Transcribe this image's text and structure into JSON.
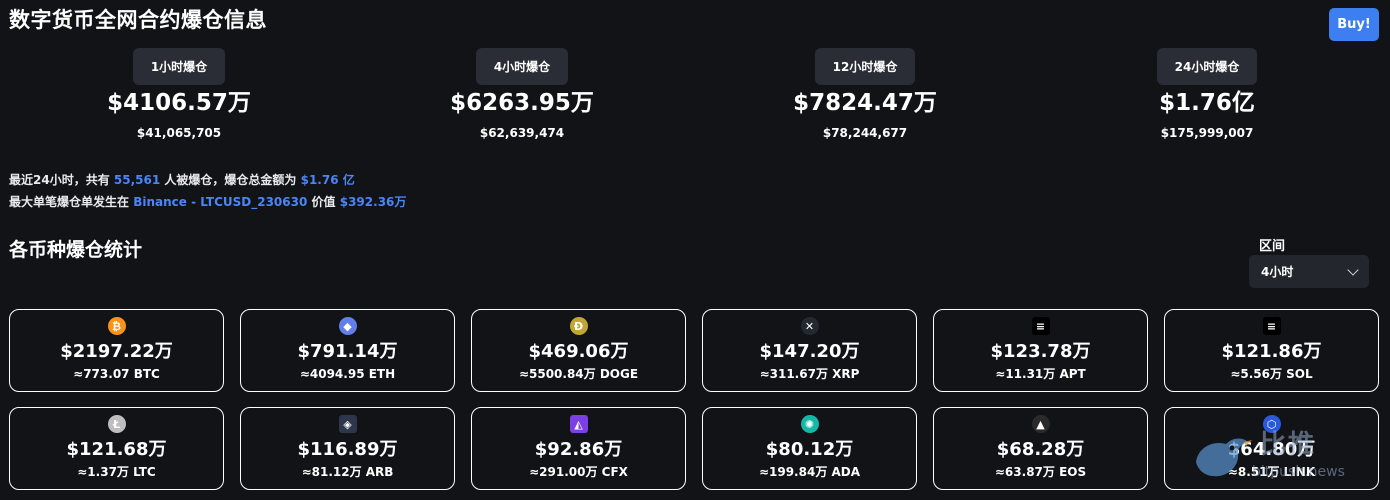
{
  "page": {
    "title": "数字货币全网合约爆仓信息",
    "buy_label": "Buy!"
  },
  "summary": [
    {
      "period": "1小时爆仓",
      "amount": "$4106.57万",
      "exact": "$41,065,705"
    },
    {
      "period": "4小时爆仓",
      "amount": "$6263.95万",
      "exact": "$62,639,474"
    },
    {
      "period": "12小时爆仓",
      "amount": "$7824.47万",
      "exact": "$78,244,677"
    },
    {
      "period": "24小时爆仓",
      "amount": "$1.76亿",
      "exact": "$175,999,007"
    }
  ],
  "info": {
    "line1_prefix": "最近24小时，共有",
    "line1_count": "55,561",
    "line1_mid": "人被爆仓，爆仓总金额为",
    "line1_total": "$1.76 亿",
    "line2_prefix": "最大单笔爆仓单发生在",
    "line2_exchange": "Binance - LTCUSD_230630",
    "line2_mid": "价值",
    "line2_value": "$392.36万"
  },
  "stats": {
    "title": "各币种爆仓统计",
    "range_label": "区间",
    "range_value": "4小时"
  },
  "coins": [
    {
      "icon": "bitcoin-icon",
      "glyph": "₿",
      "color": "#f7931a",
      "amount": "$2197.22万",
      "sub": "≈773.07 BTC"
    },
    {
      "icon": "ethereum-icon",
      "glyph": "◆",
      "color": "#627eea",
      "amount": "$791.14万",
      "sub": "≈4094.95 ETH"
    },
    {
      "icon": "dogecoin-icon",
      "glyph": "Ð",
      "color": "#c2a633",
      "amount": "$469.06万",
      "sub": "≈5500.84万 DOGE"
    },
    {
      "icon": "xrp-icon",
      "glyph": "✕",
      "color": "#23292f",
      "amount": "$147.20万",
      "sub": "≈311.67万 XRP"
    },
    {
      "icon": "aptos-icon",
      "glyph": "≡",
      "color": "#000000",
      "amount": "$123.78万",
      "sub": "≈11.31万 APT"
    },
    {
      "icon": "solana-icon",
      "glyph": "≡",
      "color": "#000000",
      "amount": "$121.86万",
      "sub": "≈5.56万 SOL"
    },
    {
      "icon": "litecoin-icon",
      "glyph": "Ł",
      "color": "#bebebe",
      "amount": "$121.68万",
      "sub": "≈1.37万 LTC"
    },
    {
      "icon": "arbitrum-icon",
      "glyph": "◈",
      "color": "#2d374b",
      "amount": "$116.89万",
      "sub": "≈81.12万 ARB"
    },
    {
      "icon": "conflux-icon",
      "glyph": "◭",
      "color": "#7b3fe4",
      "amount": "$92.86万",
      "sub": "≈291.00万 CFX"
    },
    {
      "icon": "cardano-icon",
      "glyph": "✺",
      "color": "#14b8a6",
      "amount": "$80.12万",
      "sub": "≈199.84万 ADA"
    },
    {
      "icon": "eos-icon",
      "glyph": "▲",
      "color": "#2a2a2a",
      "amount": "$68.28万",
      "sub": "≈63.87万 EOS"
    },
    {
      "icon": "chainlink-icon",
      "glyph": "⬡",
      "color": "#2a5ada",
      "amount": "$64.80万",
      "sub": "≈8.51万 LINK"
    }
  ],
  "watermark": {
    "cn": "比推",
    "en": "bitpush.news"
  }
}
